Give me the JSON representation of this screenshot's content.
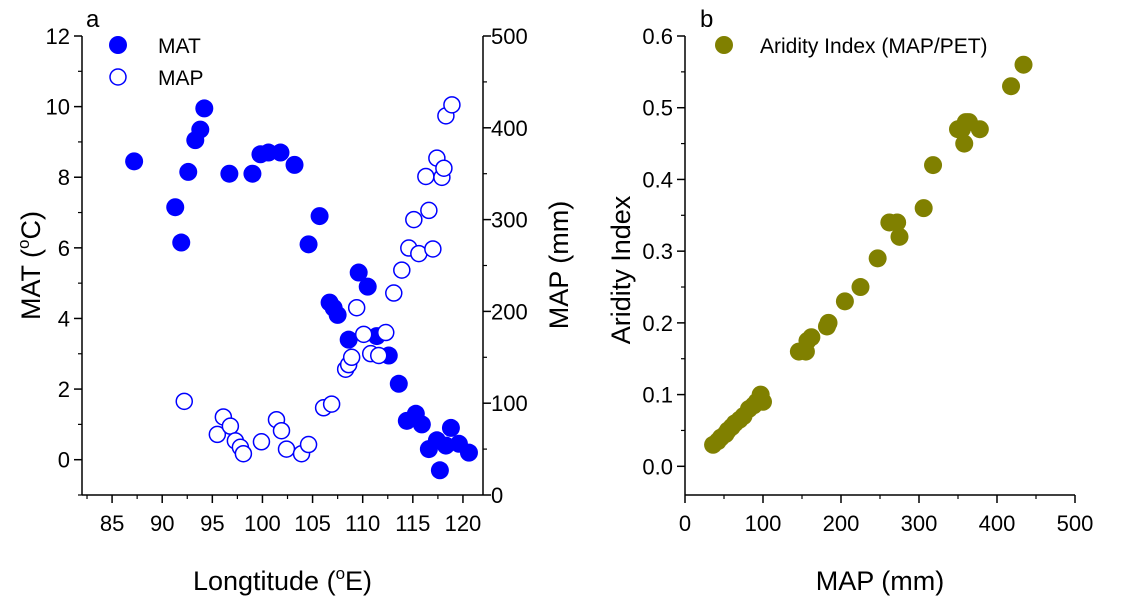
{
  "chart_data": [
    {
      "type": "scatter",
      "panel_label": "a",
      "xlabel": "Longtitude",
      "xlabel_unit": "(oE)",
      "xlabel_parts": {
        "pre": "Longtitude (",
        "sup": "o",
        "post": "E)"
      },
      "ylabel_left_parts": {
        "pre": "MAT (",
        "sup": "o",
        "post": "C)"
      },
      "ylabel_right": "MAP (mm)",
      "xlim": [
        82,
        122
      ],
      "ylim_left": [
        -1,
        12
      ],
      "ylim_right": [
        0,
        500
      ],
      "xticks": [
        85,
        90,
        95,
        100,
        105,
        110,
        115,
        120
      ],
      "xtick_labels": [
        "85",
        "90",
        "95",
        "100",
        "105",
        "110",
        "115",
        "120"
      ],
      "yticks_left": [
        0,
        2,
        4,
        6,
        8,
        10,
        12
      ],
      "yticks_right": [
        0,
        100,
        200,
        300,
        400,
        500
      ],
      "legend_position": "top-left",
      "color": "#0000ff",
      "series": [
        {
          "name": "MAT",
          "axis": "left",
          "marker": "filled-circle",
          "points": [
            [
              87.2,
              8.45
            ],
            [
              91.3,
              7.15
            ],
            [
              91.9,
              6.15
            ],
            [
              92.6,
              8.15
            ],
            [
              93.3,
              9.05
            ],
            [
              93.8,
              9.35
            ],
            [
              94.2,
              9.95
            ],
            [
              96.7,
              8.1
            ],
            [
              99.0,
              8.1
            ],
            [
              99.8,
              8.65
            ],
            [
              100.6,
              8.7
            ],
            [
              101.8,
              8.7
            ],
            [
              103.2,
              8.35
            ],
            [
              104.6,
              6.1
            ],
            [
              105.7,
              6.9
            ],
            [
              106.7,
              4.45
            ],
            [
              107.1,
              4.3
            ],
            [
              107.5,
              4.1
            ],
            [
              108.6,
              3.4
            ],
            [
              109.6,
              5.3
            ],
            [
              110.5,
              4.9
            ],
            [
              111.4,
              3.5
            ],
            [
              112.6,
              2.95
            ],
            [
              113.6,
              2.15
            ],
            [
              114.4,
              1.1
            ],
            [
              115.3,
              1.3
            ],
            [
              115.9,
              1.0
            ],
            [
              116.6,
              0.3
            ],
            [
              117.4,
              0.55
            ],
            [
              117.7,
              -0.3
            ],
            [
              118.3,
              0.4
            ],
            [
              118.8,
              0.9
            ],
            [
              119.6,
              0.45
            ],
            [
              120.6,
              0.2
            ]
          ]
        },
        {
          "name": "MAP",
          "axis": "right",
          "marker": "open-circle",
          "points": [
            [
              92.2,
              102
            ],
            [
              95.5,
              66
            ],
            [
              96.1,
              85
            ],
            [
              96.8,
              75
            ],
            [
              97.3,
              59
            ],
            [
              97.8,
              52
            ],
            [
              98.1,
              45
            ],
            [
              99.9,
              58
            ],
            [
              101.4,
              82
            ],
            [
              101.9,
              70
            ],
            [
              102.4,
              50
            ],
            [
              103.9,
              45
            ],
            [
              104.6,
              55
            ],
            [
              106.1,
              95
            ],
            [
              106.9,
              99
            ],
            [
              108.3,
              137
            ],
            [
              108.6,
              142
            ],
            [
              108.9,
              150
            ],
            [
              109.4,
              204
            ],
            [
              110.1,
              175
            ],
            [
              110.8,
              154
            ],
            [
              111.6,
              152
            ],
            [
              112.3,
              177
            ],
            [
              113.1,
              220
            ],
            [
              113.9,
              245
            ],
            [
              114.6,
              269
            ],
            [
              115.1,
              300
            ],
            [
              115.6,
              263
            ],
            [
              116.3,
              347
            ],
            [
              116.6,
              310
            ],
            [
              117.0,
              268
            ],
            [
              117.4,
              367
            ],
            [
              117.9,
              346
            ],
            [
              118.1,
              356
            ],
            [
              118.3,
              413
            ],
            [
              118.9,
              425
            ]
          ]
        }
      ]
    },
    {
      "type": "scatter",
      "panel_label": "b",
      "xlabel": "MAP (mm)",
      "ylabel": "Aridity Index",
      "xlim": [
        0,
        500
      ],
      "ylim": [
        -0.04,
        0.6
      ],
      "xticks": [
        0,
        100,
        200,
        300,
        400,
        500
      ],
      "yticks": [
        0.0,
        0.1,
        0.2,
        0.3,
        0.4,
        0.5,
        0.6
      ],
      "ytick_labels": [
        "0.0",
        "0.1",
        "0.2",
        "0.3",
        "0.4",
        "0.5",
        "0.6"
      ],
      "legend_position": "top-left",
      "color": "#808000",
      "series": [
        {
          "name": "Aridity Index (MAP/PET)",
          "marker": "filled-circle",
          "points": [
            [
              36,
              0.03
            ],
            [
              42,
              0.035
            ],
            [
              46,
              0.04
            ],
            [
              52,
              0.045
            ],
            [
              55,
              0.05
            ],
            [
              60,
              0.055
            ],
            [
              64,
              0.06
            ],
            [
              70,
              0.065
            ],
            [
              75,
              0.07
            ],
            [
              82,
              0.08
            ],
            [
              88,
              0.085
            ],
            [
              92,
              0.09
            ],
            [
              97,
              0.1
            ],
            [
              100,
              0.09
            ],
            [
              146,
              0.16
            ],
            [
              155,
              0.16
            ],
            [
              157,
              0.175
            ],
            [
              162,
              0.18
            ],
            [
              182,
              0.195
            ],
            [
              184,
              0.2
            ],
            [
              205,
              0.23
            ],
            [
              225,
              0.25
            ],
            [
              247,
              0.29
            ],
            [
              262,
              0.34
            ],
            [
              272,
              0.34
            ],
            [
              275,
              0.32
            ],
            [
              306,
              0.36
            ],
            [
              318,
              0.42
            ],
            [
              350,
              0.47
            ],
            [
              355,
              0.47
            ],
            [
              358,
              0.45
            ],
            [
              360,
              0.48
            ],
            [
              364,
              0.48
            ],
            [
              378,
              0.47
            ],
            [
              418,
              0.53
            ],
            [
              434,
              0.56
            ]
          ]
        }
      ]
    }
  ]
}
